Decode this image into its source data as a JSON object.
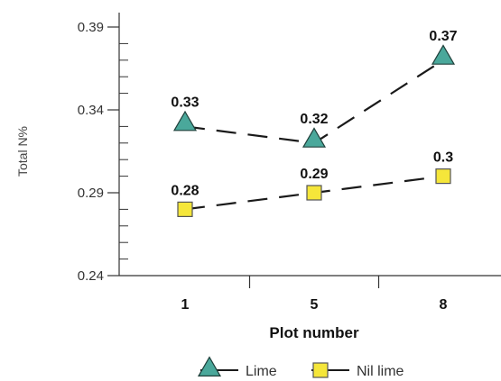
{
  "chart_data": {
    "type": "line",
    "xlabel": "Plot number",
    "ylabel": "Total N%",
    "categories": [
      "1",
      "5",
      "8"
    ],
    "ylim": [
      0.24,
      0.39
    ],
    "yticks": [
      0.24,
      0.29,
      0.34,
      0.39
    ],
    "ytick_labels": [
      "0.24",
      "0.29",
      "0.34",
      "0.39"
    ],
    "grid": false,
    "legend_position": "bottom",
    "series": [
      {
        "name": "Lime",
        "values": [
          0.33,
          0.32,
          0.37
        ],
        "labels": [
          "0.33",
          "0.32",
          "0.37"
        ],
        "marker": "triangle",
        "color": "#4aa89b",
        "line_style": "dashed"
      },
      {
        "name": "Nil lime",
        "values": [
          0.28,
          0.29,
          0.3
        ],
        "labels": [
          "0.28",
          "0.29",
          "0.3"
        ],
        "marker": "square",
        "color": "#f5e63a",
        "line_style": "dashed"
      }
    ]
  }
}
